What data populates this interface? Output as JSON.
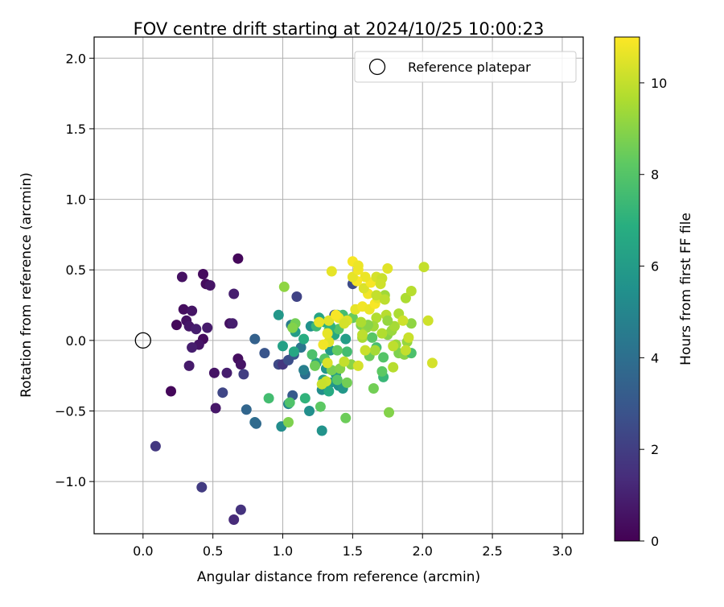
{
  "chart_data": {
    "type": "scatter",
    "title": "FOV centre drift starting at 2024/10/25 10:00:23",
    "xlabel": "Angular distance from reference (arcmin)",
    "ylabel": "Rotation from reference (arcmin)",
    "xlim": [
      -0.35,
      3.15
    ],
    "ylim": [
      -1.37,
      2.15
    ],
    "xticks": [
      "0.0",
      "0.5",
      "1.0",
      "1.5",
      "2.0",
      "2.5",
      "3.0"
    ],
    "xtick_values": [
      0,
      0.5,
      1.0,
      1.5,
      2.0,
      2.5,
      3.0
    ],
    "yticks": [
      "−1.0",
      "−0.5",
      "0.0",
      "0.5",
      "1.0",
      "1.5",
      "2.0"
    ],
    "ytick_values": [
      -1.0,
      -0.5,
      0.0,
      0.5,
      1.0,
      1.5,
      2.0
    ],
    "grid": true,
    "legend": {
      "placement": "top-right",
      "label": "Reference platepar"
    },
    "reference_point": {
      "x": 0.0,
      "y": 0.0
    },
    "colorbar": {
      "label": "Hours from first FF file",
      "min": 0,
      "max": 11,
      "ticks": [
        "0",
        "2",
        "4",
        "6",
        "8",
        "10"
      ],
      "tick_values": [
        0,
        2,
        4,
        6,
        8,
        10
      ],
      "colormap": "viridis"
    },
    "series": [
      {
        "points": [
          [
            0.68,
            0.58,
            0.2
          ],
          [
            0.43,
            0.47,
            0.3
          ],
          [
            0.28,
            0.45,
            0.5
          ],
          [
            0.45,
            0.4,
            0.3
          ],
          [
            0.48,
            0.39,
            0.6
          ],
          [
            0.65,
            0.33,
            0.9
          ],
          [
            0.29,
            0.22,
            0.4
          ],
          [
            0.35,
            0.21,
            0.6
          ],
          [
            0.31,
            0.14,
            0.5
          ],
          [
            0.24,
            0.11,
            0.2
          ],
          [
            0.33,
            0.1,
            0.7
          ],
          [
            0.38,
            0.08,
            0.9
          ],
          [
            0.46,
            0.09,
            0.8
          ],
          [
            0.62,
            0.12,
            0.5
          ],
          [
            0.64,
            0.12,
            0.9
          ],
          [
            0.43,
            0.01,
            0.3
          ],
          [
            0.4,
            -0.03,
            0.6
          ],
          [
            0.35,
            -0.05,
            0.9
          ],
          [
            0.68,
            -0.13,
            0.4
          ],
          [
            0.7,
            -0.17,
            0.6
          ],
          [
            0.33,
            -0.18,
            0.8
          ],
          [
            0.51,
            -0.23,
            0.6
          ],
          [
            0.6,
            -0.23,
            0.9
          ],
          [
            0.2,
            -0.36,
            0.2
          ],
          [
            0.52,
            -0.48,
            0.7
          ],
          [
            0.72,
            -0.24,
            2.0
          ],
          [
            0.57,
            -0.37,
            2.3
          ],
          [
            0.09,
            -0.75,
            1.8
          ],
          [
            0.42,
            -1.04,
            1.9
          ],
          [
            0.7,
            -1.2,
            1.6
          ],
          [
            0.65,
            -1.27,
            1.3
          ],
          [
            1.1,
            0.31,
            2.2
          ],
          [
            0.87,
            -0.09,
            2.9
          ],
          [
            0.97,
            -0.17,
            2.4
          ],
          [
            1.0,
            -0.17,
            1.7
          ],
          [
            1.04,
            -0.14,
            2.6
          ],
          [
            1.08,
            -0.1,
            2.9
          ],
          [
            1.07,
            -0.39,
            3.1
          ],
          [
            0.8,
            0.01,
            3.4
          ],
          [
            0.74,
            -0.49,
            3.6
          ],
          [
            0.8,
            -0.58,
            3.9
          ],
          [
            0.81,
            -0.59,
            3.8
          ],
          [
            1.16,
            -0.24,
            3.9
          ],
          [
            1.13,
            -0.05,
            4.3
          ],
          [
            1.5,
            0.4,
            2.5
          ],
          [
            1.37,
            0.18,
            3.0
          ],
          [
            1.15,
            -0.21,
            4.7
          ],
          [
            1.2,
            0.1,
            5.5
          ],
          [
            1.04,
            -0.45,
            5.0
          ],
          [
            0.99,
            -0.61,
            5.3
          ],
          [
            1.19,
            -0.5,
            5.4
          ],
          [
            1.28,
            -0.64,
            5.6
          ],
          [
            1.06,
            0.11,
            4.5
          ],
          [
            0.97,
            0.18,
            5.8
          ],
          [
            1.09,
            0.06,
            6.0
          ],
          [
            1.0,
            -0.04,
            6.2
          ],
          [
            1.08,
            -0.08,
            6.5
          ],
          [
            1.15,
            0.01,
            6.8
          ],
          [
            1.26,
            0.16,
            6.4
          ],
          [
            1.3,
            0.13,
            6.9
          ],
          [
            1.39,
            0.18,
            7.2
          ],
          [
            1.43,
            0.18,
            7.6
          ],
          [
            1.33,
            0.07,
            7.8
          ],
          [
            1.37,
            0.04,
            6.6
          ],
          [
            1.45,
            0.01,
            6.1
          ],
          [
            1.34,
            -0.07,
            5.9
          ],
          [
            1.24,
            -0.16,
            6.3
          ],
          [
            1.31,
            -0.2,
            5.7
          ],
          [
            1.38,
            -0.24,
            6.0
          ],
          [
            1.29,
            -0.28,
            6.2
          ],
          [
            1.34,
            -0.3,
            5.9
          ],
          [
            1.4,
            -0.32,
            5.5
          ],
          [
            1.43,
            -0.34,
            5.8
          ],
          [
            1.28,
            -0.35,
            5.3
          ],
          [
            1.33,
            -0.36,
            6.7
          ],
          [
            1.16,
            -0.41,
            7.1
          ],
          [
            0.9,
            -0.41,
            7.6
          ],
          [
            1.05,
            -0.44,
            7.9
          ],
          [
            1.27,
            -0.47,
            8.2
          ],
          [
            1.04,
            -0.58,
            8.8
          ],
          [
            1.45,
            -0.55,
            8.5
          ],
          [
            1.24,
            0.1,
            7.4
          ],
          [
            1.09,
            0.12,
            8.6
          ],
          [
            1.07,
            0.09,
            8.9
          ],
          [
            1.01,
            0.38,
            9.1
          ],
          [
            1.4,
            0.08,
            8.0
          ],
          [
            1.34,
            0.1,
            7.1
          ],
          [
            1.21,
            -0.1,
            7.8
          ],
          [
            1.46,
            -0.08,
            7.6
          ],
          [
            1.39,
            -0.07,
            8.3
          ],
          [
            1.3,
            -0.13,
            8.0
          ],
          [
            1.23,
            -0.18,
            8.5
          ],
          [
            1.35,
            -0.21,
            8.7
          ],
          [
            1.39,
            -0.28,
            8.1
          ],
          [
            1.46,
            -0.3,
            8.6
          ],
          [
            1.49,
            -0.17,
            9.0
          ],
          [
            1.41,
            -0.2,
            8.9
          ],
          [
            1.5,
            0.16,
            8.4
          ],
          [
            1.56,
            0.11,
            8.8
          ],
          [
            1.6,
            0.09,
            9.2
          ],
          [
            1.57,
            0.02,
            9.5
          ],
          [
            1.64,
            0.02,
            8.1
          ],
          [
            1.67,
            -0.05,
            7.7
          ],
          [
            1.62,
            -0.11,
            8.5
          ],
          [
            1.72,
            -0.12,
            8.0
          ],
          [
            1.72,
            -0.26,
            7.3
          ],
          [
            1.71,
            -0.22,
            8.2
          ],
          [
            1.65,
            -0.34,
            8.6
          ],
          [
            1.76,
            -0.51,
            8.9
          ],
          [
            1.75,
            0.04,
            9.0
          ],
          [
            1.78,
            0.07,
            9.3
          ],
          [
            1.83,
            0.19,
            9.6
          ],
          [
            1.74,
            0.18,
            9.8
          ],
          [
            1.8,
            0.1,
            9.5
          ],
          [
            1.81,
            -0.03,
            9.3
          ],
          [
            1.83,
            -0.09,
            8.8
          ],
          [
            1.87,
            -0.1,
            9.0
          ],
          [
            1.89,
            -0.01,
            9.2
          ],
          [
            1.92,
            0.12,
            9.1
          ],
          [
            1.92,
            -0.09,
            7.8
          ],
          [
            1.73,
            0.32,
            9.4
          ],
          [
            1.88,
            0.3,
            9.6
          ],
          [
            1.92,
            0.35,
            9.8
          ],
          [
            2.01,
            0.52,
            10.0
          ],
          [
            2.04,
            0.14,
            10.2
          ],
          [
            2.07,
            -0.16,
            10.3
          ],
          [
            1.9,
            0.02,
            10.1
          ],
          [
            1.79,
            -0.04,
            9.9
          ],
          [
            1.79,
            -0.19,
            9.8
          ],
          [
            1.66,
            -0.07,
            9.5
          ],
          [
            1.59,
            -0.07,
            10.1
          ],
          [
            1.54,
            -0.18,
            10.3
          ],
          [
            1.44,
            -0.15,
            10.0
          ],
          [
            1.32,
            -0.16,
            10.4
          ],
          [
            1.31,
            -0.29,
            10.2
          ],
          [
            1.33,
            -0.01,
            10.5
          ],
          [
            1.32,
            0.05,
            10.6
          ],
          [
            1.33,
            0.14,
            10.5
          ],
          [
            1.4,
            0.16,
            10.7
          ],
          [
            1.38,
            0.18,
            10.9
          ],
          [
            1.52,
            0.22,
            10.6
          ],
          [
            1.57,
            0.24,
            10.8
          ],
          [
            1.62,
            0.22,
            10.7
          ],
          [
            1.66,
            0.26,
            10.9
          ],
          [
            1.68,
            0.3,
            10.6
          ],
          [
            1.61,
            0.33,
            10.8
          ],
          [
            1.58,
            0.37,
            10.4
          ],
          [
            1.63,
            0.41,
            10.9
          ],
          [
            1.67,
            0.45,
            10.3
          ],
          [
            1.71,
            0.44,
            10.1
          ],
          [
            1.59,
            0.45,
            10.7
          ],
          [
            1.53,
            0.42,
            10.9
          ],
          [
            1.5,
            0.45,
            10.6
          ],
          [
            1.54,
            0.5,
            10.8
          ],
          [
            1.5,
            0.56,
            10.9
          ],
          [
            1.54,
            0.53,
            10.7
          ],
          [
            1.35,
            0.49,
            10.6
          ],
          [
            1.75,
            0.51,
            10.5
          ],
          [
            1.7,
            0.4,
            10.2
          ],
          [
            1.67,
            0.32,
            10.0
          ],
          [
            1.73,
            0.29,
            9.9
          ],
          [
            1.67,
            0.16,
            9.7
          ],
          [
            1.65,
            0.1,
            9.4
          ],
          [
            1.61,
            0.11,
            9.0
          ],
          [
            1.56,
            0.13,
            9.6
          ],
          [
            1.57,
            0.04,
            9.9
          ],
          [
            1.71,
            0.05,
            9.7
          ],
          [
            1.75,
            0.14,
            9.2
          ],
          [
            1.86,
            0.14,
            10.2
          ],
          [
            1.88,
            -0.07,
            10.0
          ],
          [
            1.46,
            0.14,
            10.4
          ],
          [
            1.44,
            0.12,
            10.3
          ],
          [
            1.26,
            0.13,
            10.6
          ],
          [
            1.29,
            -0.03,
            10.8
          ],
          [
            1.28,
            -0.31,
            10.1
          ]
        ]
      }
    ]
  }
}
